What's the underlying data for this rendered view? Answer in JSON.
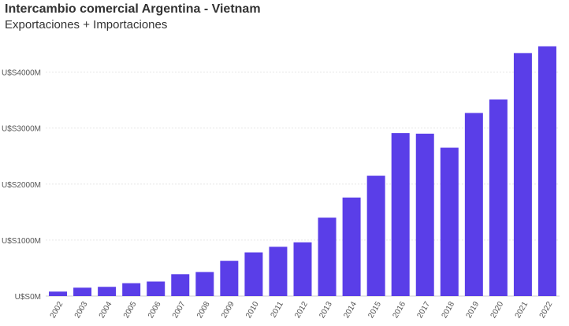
{
  "header": {
    "title": "Intercambio comercial Argentina - Vietnam",
    "subtitle": "Exportaciones + Importaciones"
  },
  "colors": {
    "bar": "#5a3ee8",
    "grid": "#e6e6e6",
    "text": "#333333"
  },
  "chart_data": {
    "type": "bar",
    "title": "Intercambio comercial Argentina - Vietnam",
    "subtitle": "Exportaciones + Importaciones",
    "xlabel": "",
    "ylabel": "",
    "categories": [
      "2002",
      "2003",
      "2004",
      "2005",
      "2006",
      "2007",
      "2008",
      "2009",
      "2010",
      "2011",
      "2012",
      "2013",
      "2014",
      "2015",
      "2016",
      "2017",
      "2018",
      "2019",
      "2020",
      "2021",
      "2022"
    ],
    "values": [
      80,
      150,
      165,
      230,
      260,
      390,
      430,
      630,
      780,
      880,
      960,
      1400,
      1760,
      2150,
      2910,
      2900,
      2650,
      3270,
      3510,
      4340,
      4460
    ],
    "ylim": [
      0,
      4500
    ],
    "yticks": [
      0,
      1000,
      2000,
      3000,
      4000
    ],
    "ytick_labels": [
      "U$S0M",
      "U$S1000M",
      "U$S2000M",
      "U$S3000M",
      "U$S4000M"
    ],
    "grid": true,
    "legend": "none"
  }
}
